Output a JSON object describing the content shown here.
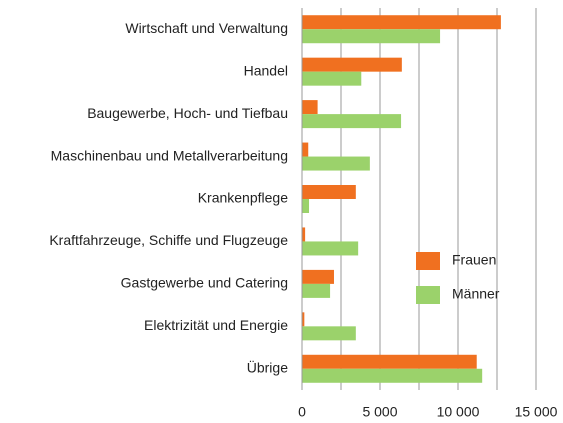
{
  "chart_data": {
    "type": "barh",
    "categories": [
      "Wirtschaft und Verwaltung",
      "Handel",
      "Baugewerbe, Hoch- und Tiefbau",
      "Maschinenbau und Metallverarbeitung",
      "Krankenpflege",
      "Kraftfahrzeuge, Schiffe und Flugzeuge",
      "Gastgewerbe und Catering",
      "Elektrizität und Energie",
      "Übrige"
    ],
    "series": [
      {
        "name": "Frauen",
        "color": "#f07020",
        "values": [
          12750,
          6400,
          1000,
          400,
          3450,
          200,
          2050,
          150,
          11200
        ]
      },
      {
        "name": "Männer",
        "color": "#9bd26b",
        "values": [
          8850,
          3800,
          6350,
          4350,
          450,
          3600,
          1800,
          3450,
          11550
        ]
      }
    ],
    "xlim": [
      0,
      15000
    ],
    "xticks": [
      0,
      {
        "value": 5000,
        "label": "5 000"
      },
      {
        "value": 10000,
        "label": "10 000"
      },
      {
        "value": 15000,
        "label": "15 000"
      }
    ],
    "x_minor_grid": [
      2500,
      7500,
      12500
    ],
    "grid": true,
    "legend": "right"
  }
}
